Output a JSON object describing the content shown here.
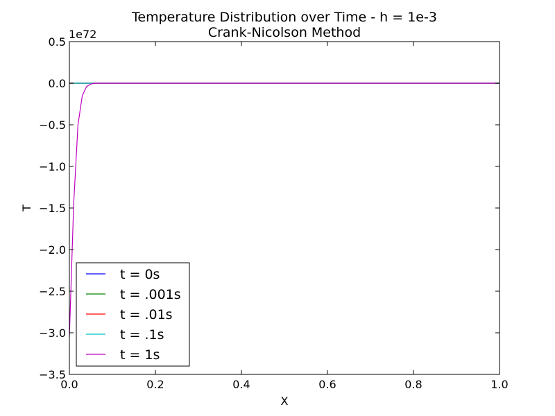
{
  "chart_data": {
    "type": "line",
    "title": "Temperature Distribution over Time - h = 1e-3",
    "subtitle": "Crank-Nicolson Method",
    "xlabel": "X",
    "ylabel": "T",
    "y_offset_label": "1e72",
    "xlim": [
      0.0,
      1.0
    ],
    "ylim": [
      -3.5,
      0.5
    ],
    "x_ticks": [
      0.0,
      0.2,
      0.4,
      0.6,
      0.8,
      1.0
    ],
    "x_tick_labels": [
      "0.0",
      "0.2",
      "0.4",
      "0.6",
      "0.8",
      "1.0"
    ],
    "y_ticks": [
      -3.5,
      -3.0,
      -2.5,
      -2.0,
      -1.5,
      -1.0,
      -0.5,
      0.0,
      0.5
    ],
    "y_tick_labels": [
      "−3.5",
      "−3.0",
      "−2.5",
      "−2.0",
      "−1.5",
      "−1.0",
      "−0.5",
      "0.0",
      "0.5"
    ],
    "grid": false,
    "legend_position": "lower-left",
    "series": [
      {
        "name": "t = 0s",
        "color": "#0000ff",
        "x": [
          0.0,
          1.0
        ],
        "y": [
          0.0,
          0.0
        ]
      },
      {
        "name": "t = .001s",
        "color": "#008000",
        "x": [
          0.0,
          1.0
        ],
        "y": [
          0.0,
          0.0
        ]
      },
      {
        "name": "t = .01s",
        "color": "#ff0000",
        "x": [
          0.0,
          1.0
        ],
        "y": [
          0.0,
          0.0
        ]
      },
      {
        "name": "t = .1s",
        "color": "#00bfbf",
        "x": [
          0.0,
          1.0
        ],
        "y": [
          0.0,
          0.0
        ]
      },
      {
        "name": "t = 1s",
        "color": "#bf00bf",
        "x": [
          0.0,
          0.01,
          0.02,
          0.03,
          0.04,
          0.05,
          0.06,
          0.07,
          0.1,
          0.2,
          0.4,
          0.6,
          0.8,
          1.0
        ],
        "y": [
          -3.05,
          -1.45,
          -0.5,
          -0.15,
          -0.04,
          -0.01,
          0.0,
          0.0,
          0.0,
          0.0,
          0.0,
          0.0,
          0.0,
          0.0
        ]
      }
    ]
  }
}
